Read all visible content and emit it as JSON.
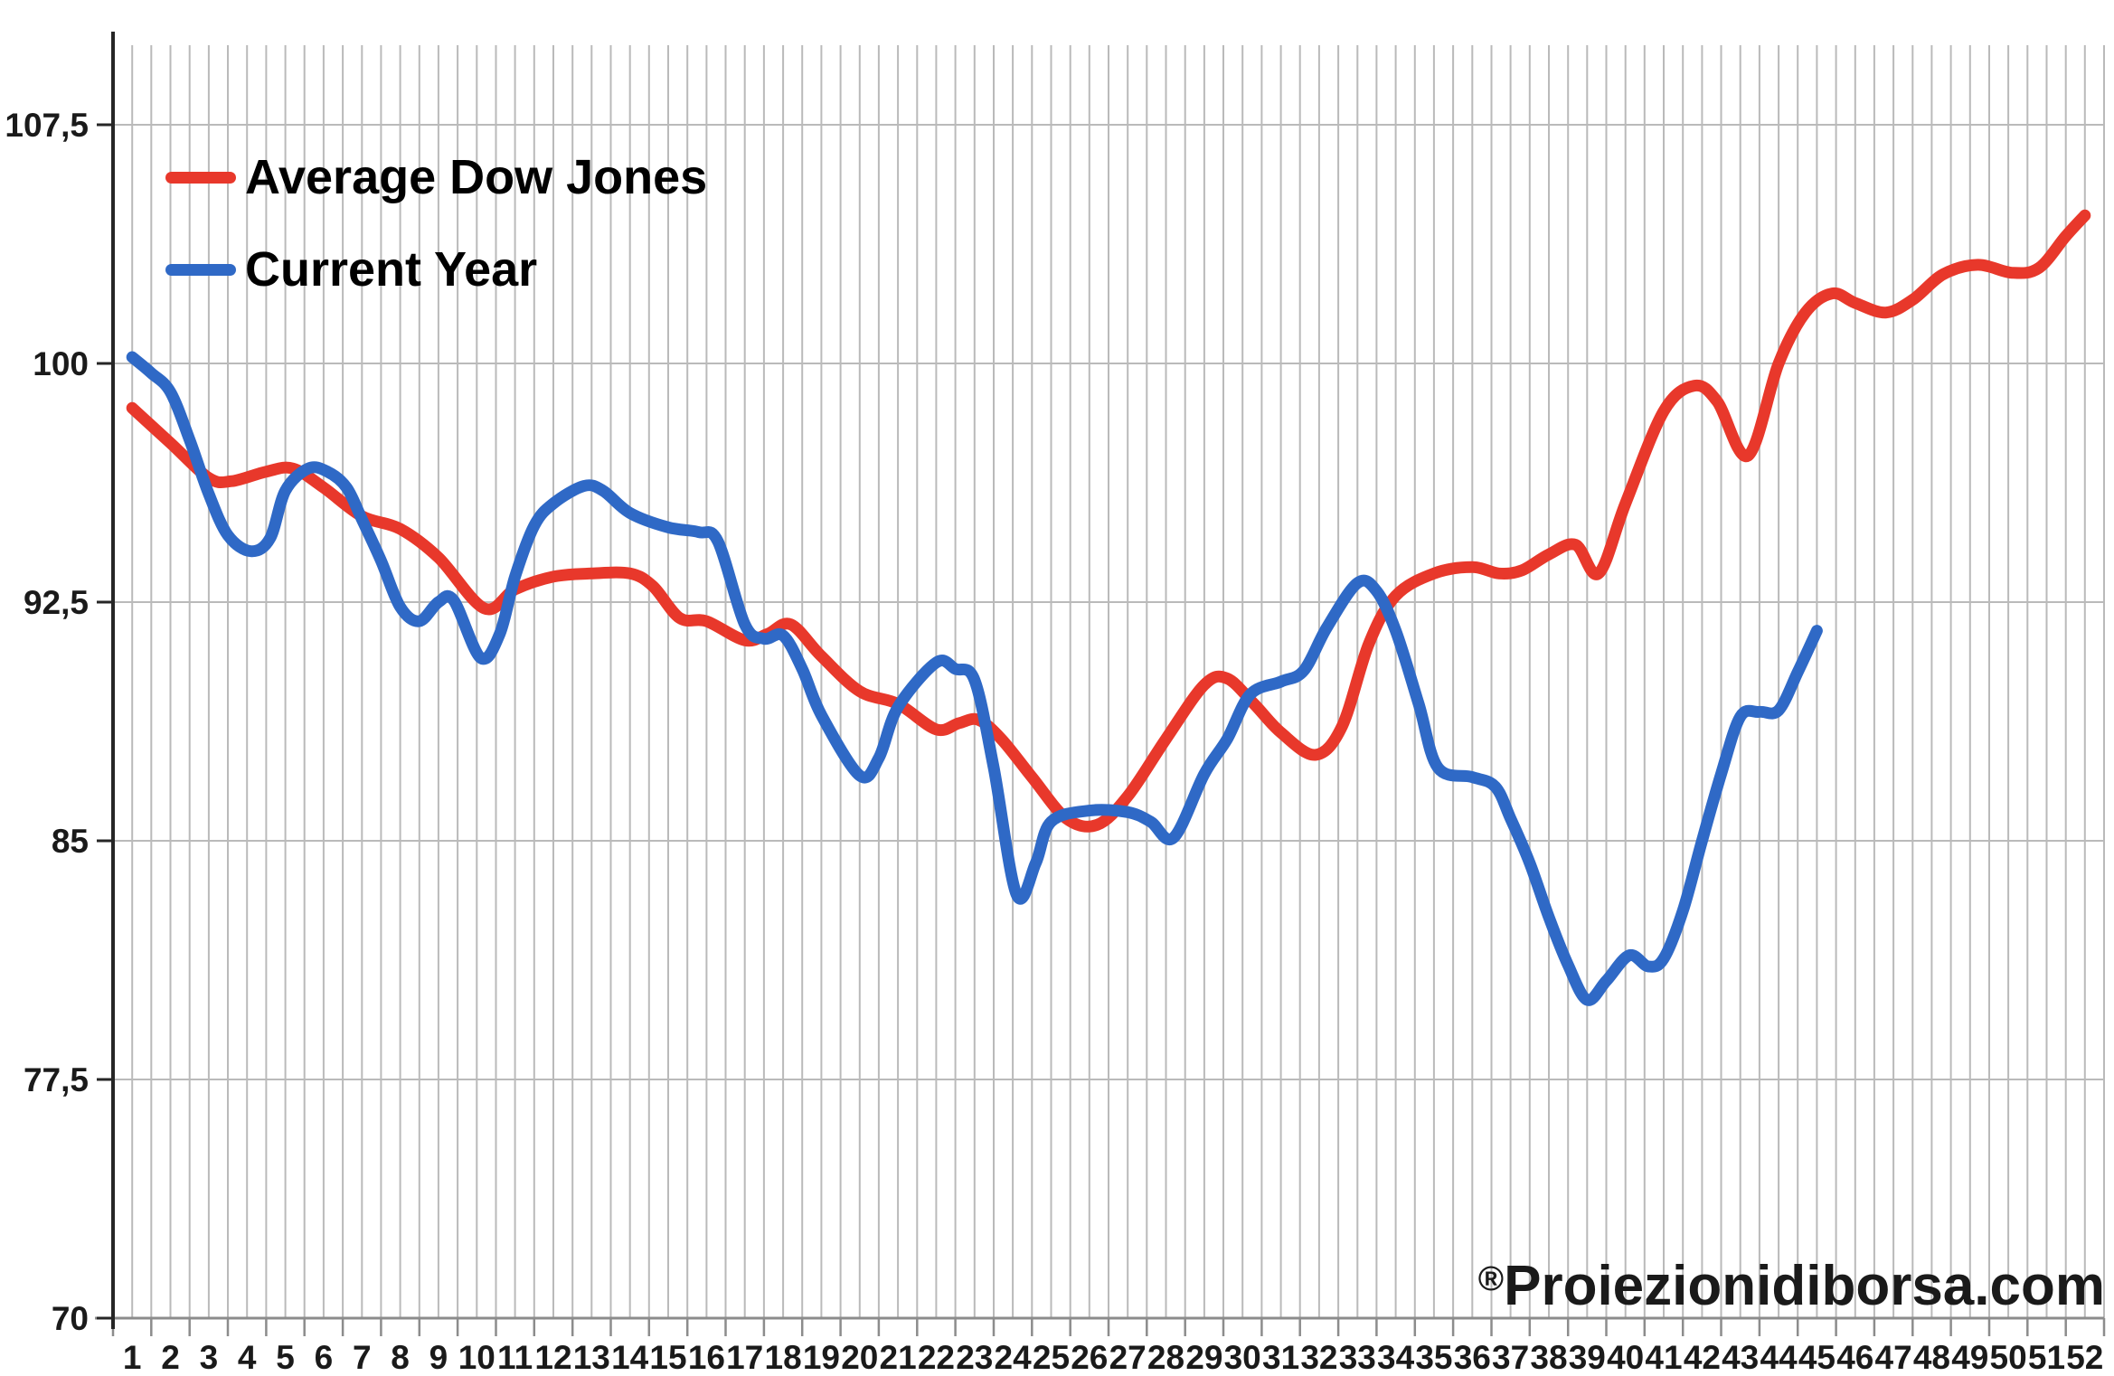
{
  "page": {
    "background": "#ffffff"
  },
  "colors": {
    "average_dow_jones": "#E8382B",
    "current_year": "#2F69C6",
    "gridline": "#BABABA",
    "y_axis_line": "#262626",
    "x_baseline": "#8C8C8C",
    "tick_mark": "#8C8C8C",
    "axis_label_text": "#1A1A1A",
    "legend_text": "#000000",
    "watermark_text": "#1A1A1A"
  },
  "legend": [
    {
      "label": "Average Dow Jones",
      "series_key": "average_dow_jones"
    },
    {
      "label": "Current Year",
      "series_key": "current_year"
    }
  ],
  "watermark": {
    "symbol": "®",
    "name": "Proiezionidiborsa.com"
  },
  "chart_data": {
    "type": "line",
    "title": "",
    "xlabel": "",
    "ylabel": "",
    "x_axis": {
      "tick_labels": [
        "1",
        "2",
        "3",
        "4",
        "5",
        "6",
        "7",
        "8",
        "9",
        "10",
        "11",
        "12",
        "13",
        "14",
        "15",
        "16",
        "17",
        "18",
        "19",
        "20",
        "21",
        "22",
        "23",
        "24",
        "25",
        "26",
        "27",
        "28",
        "29",
        "30",
        "31",
        "32",
        "33",
        "34",
        "35",
        "36",
        "37",
        "38",
        "39",
        "40",
        "41",
        "42",
        "43",
        "44",
        "45",
        "46",
        "47",
        "48",
        "49",
        "50",
        "51",
        "52"
      ],
      "weeks": 52,
      "minor_gridlines_per_week": 2
    },
    "y_axis": {
      "min": 70,
      "max": 110,
      "tick_values": [
        70,
        77.5,
        85,
        92.5,
        100,
        107.5
      ],
      "tick_labels": [
        "70",
        "77,5",
        "85",
        "92,5",
        "100",
        "107,5"
      ],
      "decimal_separator": "comma"
    },
    "grid": {
      "horizontal": true,
      "vertical": true,
      "legend_position": "top-left-inside"
    },
    "series": [
      {
        "name": "Average Dow Jones",
        "color": "#E8382B",
        "x": [
          1,
          2,
          3,
          3.6,
          4.5,
          5.2,
          6,
          7,
          8,
          9,
          10.2,
          11,
          12,
          13,
          14,
          14.6,
          15.3,
          16,
          17,
          17.6,
          18.2,
          19,
          20,
          21,
          22,
          22.6,
          23.1,
          23.7,
          24.5,
          25.4,
          26.2,
          27,
          28,
          29,
          29.6,
          30.3,
          31,
          31.9,
          32.6,
          33.3,
          34,
          35,
          36,
          36.7,
          37.3,
          38,
          38.7,
          39.3,
          40,
          41,
          41.8,
          42.4,
          43.2,
          44,
          44.7,
          45.4,
          46,
          46.8,
          47.5,
          48.3,
          49.2,
          50.1,
          50.8,
          51.5,
          52
        ],
        "values": [
          98.6,
          97.5,
          96.4,
          96.3,
          96.6,
          96.7,
          96.1,
          95.2,
          94.8,
          93.9,
          92.3,
          92.9,
          93.3,
          93.4,
          93.4,
          93.0,
          92.0,
          91.9,
          91.3,
          91.5,
          91.8,
          90.8,
          89.7,
          89.3,
          88.5,
          88.7,
          88.8,
          88.2,
          87.0,
          85.7,
          85.5,
          86.4,
          88.2,
          89.9,
          90.1,
          89.3,
          88.4,
          87.7,
          88.6,
          91.2,
          92.7,
          93.4,
          93.6,
          93.4,
          93.5,
          94.0,
          94.3,
          93.4,
          95.6,
          98.5,
          99.3,
          98.8,
          97.1,
          100.0,
          101.6,
          102.2,
          101.9,
          101.6,
          102.0,
          102.8,
          103.1,
          102.85,
          103.0,
          104.0,
          104.65
        ]
      },
      {
        "name": "Current Year",
        "color": "#2F69C6",
        "x": [
          1,
          1.5,
          2,
          2.5,
          3,
          3.5,
          4.1,
          4.6,
          5,
          5.6,
          6.1,
          6.6,
          7,
          7.5,
          8,
          8.5,
          9,
          9.4,
          10.1,
          10.6,
          11,
          11.5,
          12,
          12.8,
          13.3,
          14,
          15,
          15.8,
          16.3,
          17,
          17.5,
          18,
          18.5,
          19,
          20,
          20.5,
          21,
          22,
          22.5,
          23,
          23.5,
          24.1,
          24.6,
          25,
          26,
          27,
          27.6,
          28.2,
          29,
          29.6,
          30.2,
          31,
          31.6,
          32.2,
          33,
          33.5,
          34,
          34.6,
          35.1,
          36,
          36.6,
          37,
          37.5,
          38,
          38.5,
          39,
          39.5,
          40.1,
          40.6,
          41,
          41.5,
          42,
          42.5,
          43,
          43.5,
          44,
          44.5,
          45
        ],
        "values": [
          100.2,
          99.7,
          99.1,
          97.6,
          95.9,
          94.6,
          94.1,
          94.5,
          96.0,
          96.7,
          96.6,
          96.1,
          95.1,
          93.8,
          92.35,
          91.9,
          92.5,
          92.55,
          90.75,
          91.5,
          93.3,
          94.9,
          95.6,
          96.15,
          96.0,
          95.3,
          94.85,
          94.7,
          94.4,
          91.8,
          91.35,
          91.45,
          90.4,
          88.95,
          87.05,
          87.6,
          89.2,
          90.6,
          90.4,
          90.05,
          87.3,
          83.3,
          84.3,
          85.6,
          85.95,
          85.9,
          85.6,
          85.1,
          87.1,
          88.2,
          89.6,
          90.0,
          90.35,
          91.7,
          93.1,
          92.85,
          91.6,
          89.3,
          87.3,
          87.0,
          86.7,
          85.7,
          84.3,
          82.6,
          81.1,
          80.0,
          80.6,
          81.4,
          81.05,
          81.3,
          82.8,
          85.0,
          87.1,
          88.9,
          89.05,
          89.1,
          90.3,
          91.6
        ]
      }
    ]
  }
}
